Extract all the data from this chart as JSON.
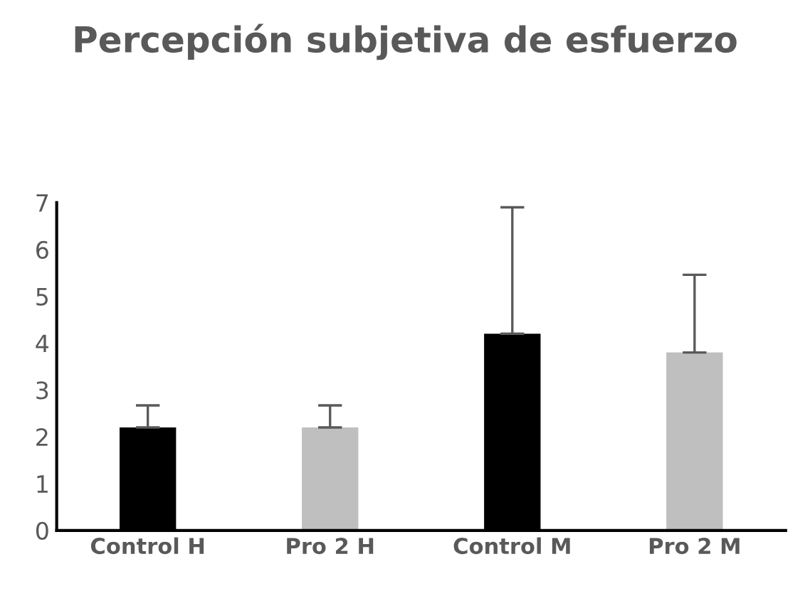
{
  "chart_data": {
    "type": "bar",
    "title": "Percepción subjetiva de esfuerzo",
    "categories": [
      "Control H",
      "Pro 2 H",
      "Control M",
      "Pro 2 M"
    ],
    "values": [
      2.2,
      2.2,
      4.2,
      3.8
    ],
    "errors": [
      [
        2.2,
        2.67
      ],
      [
        2.2,
        2.67
      ],
      [
        4.2,
        6.9
      ],
      [
        3.8,
        5.46
      ]
    ],
    "colors": [
      "#000000",
      "#bfbfbf",
      "#000000",
      "#bfbfbf"
    ],
    "ylim": [
      0,
      7
    ],
    "yticks": [
      0,
      1,
      2,
      3,
      4,
      5,
      6,
      7
    ],
    "grid": false,
    "legend": false
  }
}
